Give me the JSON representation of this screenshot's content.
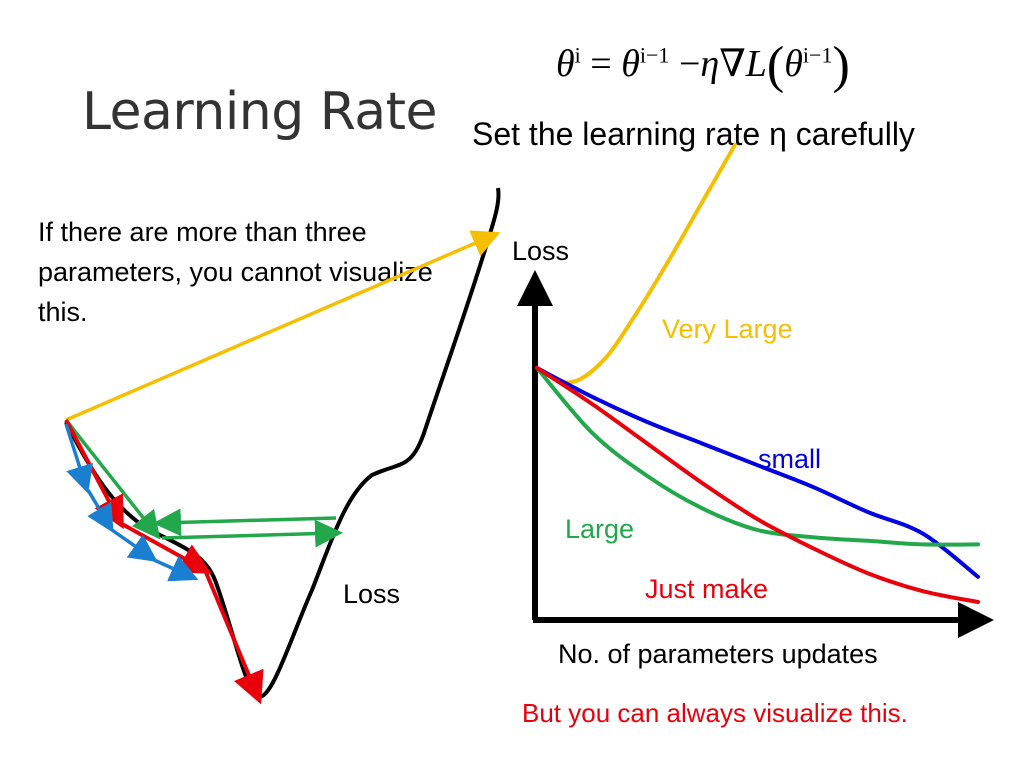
{
  "slide": {
    "title": "Learning Rate",
    "formula": {
      "theta": "θ",
      "sup_i": "i",
      "eq": "=",
      "sup_im1": "i−1",
      "minus": "−",
      "eta": "η",
      "grad": "∇",
      "L": "L",
      "lparen": "(",
      "rparen": ")"
    },
    "subtitle": "Set the learning rate η carefully",
    "note": "If there are more than three parameters, you cannot visualize this.",
    "loss_surface_label": "Loss",
    "footer": "But you can always visualize this."
  },
  "chart_data": {
    "type": "line",
    "ylabel": "Loss",
    "xlabel": "No. of parameters updates",
    "series": [
      {
        "name": "Very Large",
        "color": "#f5bf00",
        "values": [
          0.7,
          0.66,
          0.72,
          0.85,
          1.0,
          1.16,
          1.32
        ]
      },
      {
        "name": "small",
        "color": "#0000e0",
        "values": [
          0.7,
          0.62,
          0.55,
          0.49,
          0.43,
          0.37,
          0.3,
          0.24,
          0.12
        ]
      },
      {
        "name": "Large",
        "color": "#22a84a",
        "values": [
          0.7,
          0.52,
          0.4,
          0.31,
          0.25,
          0.23,
          0.22,
          0.21,
          0.21
        ]
      },
      {
        "name": "Just make",
        "color": "#e8000b",
        "values": [
          0.7,
          0.6,
          0.49,
          0.38,
          0.28,
          0.2,
          0.13,
          0.08,
          0.05
        ]
      }
    ]
  },
  "colors": {
    "gold": "#f5bf00",
    "blue": "#0000e0",
    "green": "#22a84a",
    "red": "#e8000b",
    "arrow_blue": "#1a7fd0"
  }
}
